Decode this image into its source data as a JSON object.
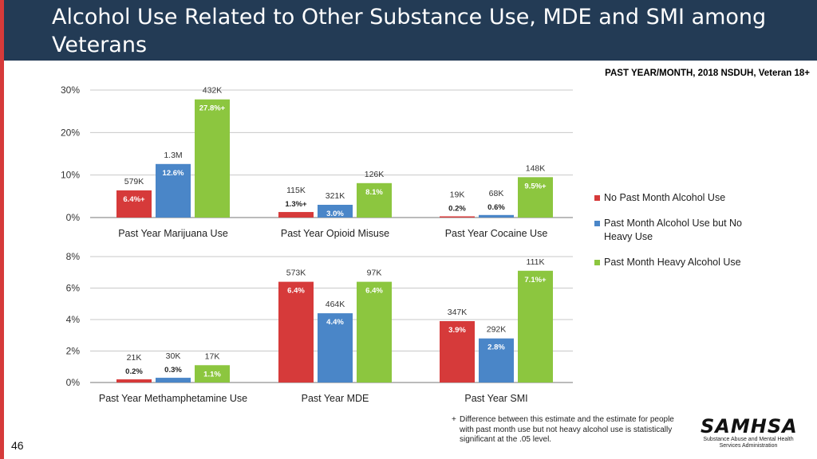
{
  "colors": {
    "header_bg": "#233b55",
    "left_bar": "#d63a3a",
    "series": [
      "#d63a3a",
      "#4a86c8",
      "#8cc63f"
    ]
  },
  "header": {
    "title": "Alcohol Use Related to Other Substance Use, MDE and SMI among Veterans"
  },
  "source_note": "PAST YEAR/MONTH, 2018 NSDUH, Veteran 18+",
  "legend": [
    "No Past Month Alcohol Use",
    "Past Month Alcohol Use but No Heavy Use",
    "Past Month Heavy Alcohol Use"
  ],
  "footnote": {
    "symbol": "+",
    "text": "Difference between this estimate and the estimate for people with past month use but not heavy alcohol use is statistically significant at the .05 level."
  },
  "logo": {
    "name": "SAMHSA",
    "subtitle": "Substance Abuse and Mental Health Services Administration"
  },
  "page_number": "46",
  "chart_data": [
    {
      "type": "bar",
      "title": "",
      "ylim": [
        0,
        30
      ],
      "yticks": [
        "0%",
        "10%",
        "20%",
        "30%"
      ],
      "ytick_values": [
        0,
        10,
        20,
        30
      ],
      "categories": [
        "Past Year Marijuana Use",
        "Past Year Opioid Misuse",
        "Past Year Cocaine Use"
      ],
      "series": [
        {
          "name": "No Past Month Alcohol Use",
          "values": [
            6.4,
            1.3,
            0.2
          ],
          "labels": [
            "6.4%+",
            "1.3%+",
            "0.2%"
          ],
          "counts": [
            "579K",
            "115K",
            "19K"
          ]
        },
        {
          "name": "Past Month Alcohol Use but No Heavy Use",
          "values": [
            12.6,
            3.0,
            0.6
          ],
          "labels": [
            "12.6%",
            "3.0%",
            "0.6%"
          ],
          "counts": [
            "1.3M",
            "321K",
            "68K"
          ]
        },
        {
          "name": "Past Month Heavy Alcohol Use",
          "values": [
            27.8,
            8.1,
            9.5
          ],
          "labels": [
            "27.8%+",
            "8.1%",
            "9.5%+"
          ],
          "counts": [
            "432K",
            "126K",
            "148K"
          ]
        }
      ]
    },
    {
      "type": "bar",
      "title": "",
      "ylim": [
        0,
        8
      ],
      "yticks": [
        "0%",
        "2%",
        "4%",
        "6%",
        "8%"
      ],
      "ytick_values": [
        0,
        2,
        4,
        6,
        8
      ],
      "categories": [
        "Past Year Methamphetamine Use",
        "Past Year MDE",
        "Past Year SMI"
      ],
      "series": [
        {
          "name": "No Past Month Alcohol Use",
          "values": [
            0.2,
            6.4,
            3.9
          ],
          "labels": [
            "0.2%",
            "6.4%",
            "3.9%"
          ],
          "counts": [
            "21K",
            "573K",
            "347K"
          ]
        },
        {
          "name": "Past Month Alcohol Use but No Heavy Use",
          "values": [
            0.3,
            4.4,
            2.8
          ],
          "labels": [
            "0.3%",
            "4.4%",
            "2.8%"
          ],
          "counts": [
            "30K",
            "464K",
            "292K"
          ]
        },
        {
          "name": "Past Month Heavy Alcohol Use",
          "values": [
            1.1,
            6.4,
            7.1
          ],
          "labels": [
            "1.1%",
            "6.4%",
            "7.1%+"
          ],
          "counts": [
            "17K",
            "97K",
            "111K"
          ]
        }
      ]
    }
  ]
}
